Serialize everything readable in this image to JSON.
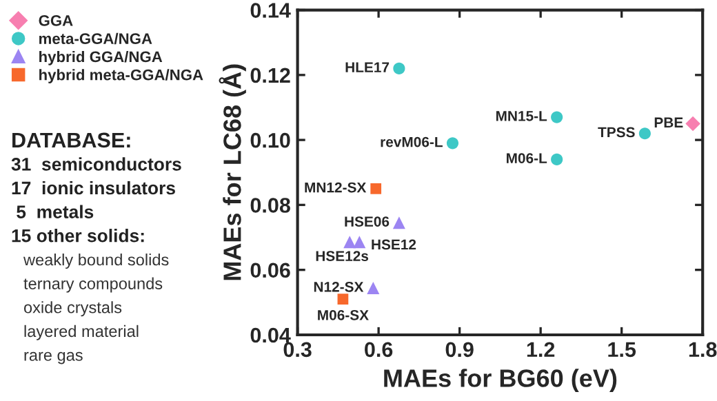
{
  "chart_data": {
    "type": "scatter",
    "xlabel": "MAEs for BG60 (eV)",
    "ylabel": "MAEs for LC68 (Å)",
    "xlim": [
      0.3,
      1.8
    ],
    "xticks": [
      0.3,
      0.6,
      0.9,
      1.2,
      1.5,
      1.8
    ],
    "ylim": [
      0.04,
      0.14
    ],
    "yticks": [
      0.04,
      0.06,
      0.08,
      {
        "value": 0.1,
        "label": "0.10"
      },
      0.12,
      0.14
    ],
    "grid": false,
    "legend": "left",
    "series": [
      {
        "name": "GGA",
        "color": "#f77fb0",
        "marker": "diamond",
        "x": [
          1.764
        ],
        "values": [
          0.105
        ]
      },
      {
        "name": "meta-GGA/NGA",
        "color": "#3ec8c6",
        "marker": "circle",
        "x": [
          0.676,
          1.26,
          0.874,
          1.26,
          1.586
        ],
        "values": [
          0.122,
          0.107,
          0.099,
          0.094,
          0.102
        ]
      },
      {
        "name": "hybrid GGA/NGA",
        "color": "#9c85f2",
        "marker": "triangle",
        "x": [
          0.676,
          0.529,
          0.493,
          0.58
        ],
        "values": [
          0.0745,
          0.0686,
          0.0686,
          0.0544
        ]
      },
      {
        "name": "hybrid meta-GGA/NGA",
        "color": "#f7682c",
        "marker": "square",
        "x": [
          0.59,
          0.468
        ],
        "values": [
          0.085,
          0.051
        ]
      }
    ],
    "annotations": [
      {
        "text": "PBE",
        "x": 1.764,
        "y": 0.105
      },
      {
        "text": "HLE17",
        "x": 0.676,
        "y": 0.122
      },
      {
        "text": "MN15-L",
        "x": 1.26,
        "y": 0.107
      },
      {
        "text": "revM06-L",
        "x": 0.874,
        "y": 0.099
      },
      {
        "text": "M06-L",
        "x": 1.26,
        "y": 0.094
      },
      {
        "text": "TPSS",
        "x": 1.586,
        "y": 0.102
      },
      {
        "text": "HSE06",
        "x": 0.676,
        "y": 0.0745
      },
      {
        "text": "HSE12",
        "x": 0.529,
        "y": 0.0686
      },
      {
        "text": "HSE12s",
        "x": 0.493,
        "y": 0.0686
      },
      {
        "text": "N12-SX",
        "x": 0.58,
        "y": 0.0544
      },
      {
        "text": "MN12-SX",
        "x": 0.59,
        "y": 0.085
      },
      {
        "text": "M06-SX",
        "x": 0.468,
        "y": 0.051
      },
      "DATABASE:",
      "31  semiconductors",
      "17  ionic insulators",
      " 5  metals",
      "15 other solids:",
      "weakly bound solids",
      "ternary compounds",
      "oxide crystals",
      "layered material",
      "rare gas"
    ]
  }
}
